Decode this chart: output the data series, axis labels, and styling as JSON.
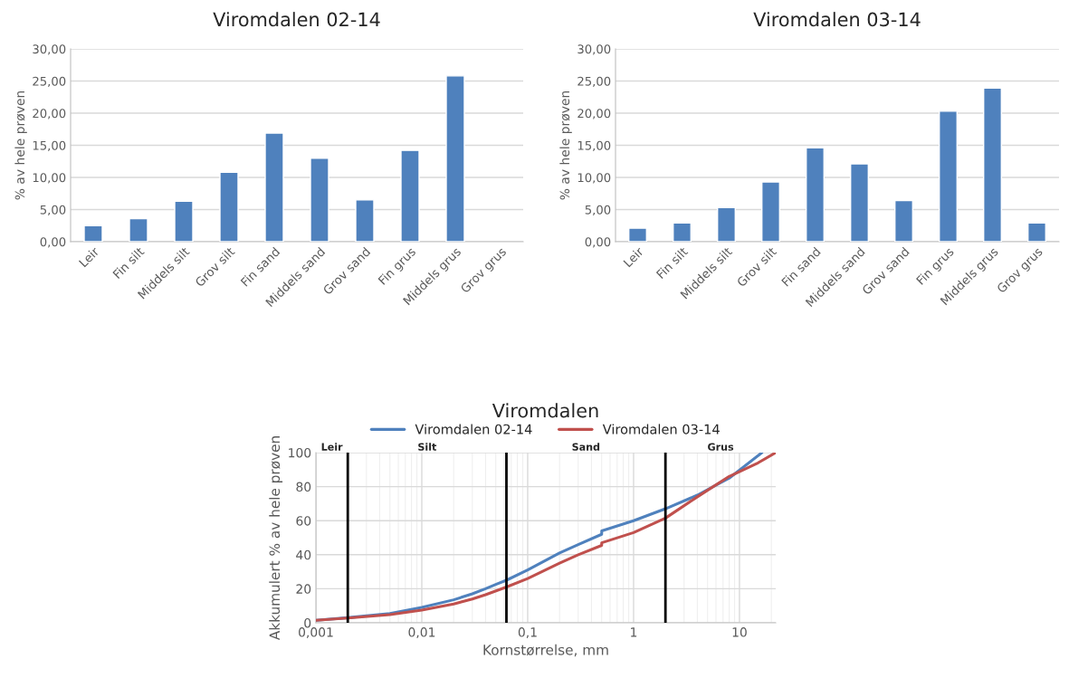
{
  "chart_data": [
    {
      "type": "bar",
      "title": "Viromdalen 02-14",
      "ylabel": "% av hele prøven",
      "categories": [
        "Leir",
        "Fin silt",
        "Middels silt",
        "Grov silt",
        "Fin sand",
        "Middels sand",
        "Grov sand",
        "Fin grus",
        "Middels grus",
        "Grov grus"
      ],
      "values": [
        2.5,
        3.6,
        6.3,
        10.8,
        16.9,
        13.0,
        6.5,
        14.2,
        25.8,
        null
      ],
      "color": "#4f81bd",
      "ylim": [
        0,
        30
      ],
      "yticks": [
        {
          "value": 0,
          "label": "0,00"
        },
        {
          "value": 5,
          "label": "5,00"
        },
        {
          "value": 10,
          "label": "10,00"
        },
        {
          "value": 15,
          "label": "15,00"
        },
        {
          "value": 20,
          "label": "20,00"
        },
        {
          "value": 25,
          "label": "25,00"
        },
        {
          "value": 30,
          "label": "30,00"
        }
      ],
      "grid": "y",
      "legend": false
    },
    {
      "type": "bar",
      "title": "Viromdalen 03-14",
      "ylabel": "% av hele prøven",
      "categories": [
        "Leir",
        "Fin silt",
        "Middels silt",
        "Grov silt",
        "Fin sand",
        "Middels sand",
        "Grov sand",
        "Fin grus",
        "Middels grus",
        "Grov grus"
      ],
      "values": [
        2.1,
        2.9,
        5.3,
        9.3,
        14.6,
        12.1,
        6.4,
        20.3,
        23.9,
        2.9
      ],
      "color": "#4f81bd",
      "ylim": [
        0,
        30
      ],
      "yticks": [
        {
          "value": 0,
          "label": "0,00"
        },
        {
          "value": 5,
          "label": "5,00"
        },
        {
          "value": 10,
          "label": "10,00"
        },
        {
          "value": 15,
          "label": "15,00"
        },
        {
          "value": 20,
          "label": "20,00"
        },
        {
          "value": 25,
          "label": "25,00"
        },
        {
          "value": 30,
          "label": "30,00"
        }
      ],
      "grid": "y",
      "legend": false
    },
    {
      "type": "line",
      "title": "Viromdalen",
      "xlabel": "Kornstørrelse, mm",
      "ylabel": "Akkumulert % av hele prøven",
      "log": "x",
      "xlim": [
        0.001,
        22
      ],
      "ylim": [
        0,
        100
      ],
      "xticks": [
        {
          "value": 0.001,
          "label": "0,001"
        },
        {
          "value": 0.01,
          "label": "0,01"
        },
        {
          "value": 0.1,
          "label": "0,1"
        },
        1,
        10
      ],
      "yticks": [
        0,
        20,
        40,
        60,
        80,
        100
      ],
      "grid": true,
      "legend": "top",
      "marker": "none",
      "line_style": "solid",
      "series": [
        {
          "name": "Viromdalen 02-14",
          "color": "#4f81bd",
          "x": [
            0.001,
            0.002,
            0.005,
            0.01,
            0.02,
            0.03,
            0.04,
            0.05,
            0.063,
            0.1,
            0.2,
            0.3,
            0.5,
            0.5,
            1,
            2,
            4,
            8,
            16.3
          ],
          "values": [
            1.5,
            3,
            5.5,
            9,
            13.5,
            17,
            20,
            22.5,
            25,
            31,
            41,
            46,
            52,
            54,
            60,
            67,
            75,
            85,
            100
          ]
        },
        {
          "name": "Viromdalen 03-14",
          "color": "#c0504d",
          "x": [
            0.001,
            0.002,
            0.005,
            0.01,
            0.02,
            0.03,
            0.04,
            0.063,
            0.1,
            0.2,
            0.3,
            0.5,
            0.5,
            1,
            2,
            4,
            8,
            15,
            22
          ],
          "values": [
            1.5,
            2.8,
            4.8,
            7.5,
            11,
            14,
            16.5,
            21,
            26,
            35,
            40,
            45.5,
            47,
            53,
            61.5,
            74,
            86,
            94,
            100
          ]
        }
      ],
      "ref_lines": [
        {
          "axis": "x",
          "value": 0.002,
          "color": "#000000"
        },
        {
          "axis": "x",
          "value": 0.063,
          "color": "#000000"
        },
        {
          "axis": "x",
          "value": 2,
          "color": "#000000"
        }
      ],
      "annotations": [
        "Leir",
        "Silt",
        "Sand",
        "Grus"
      ]
    }
  ]
}
